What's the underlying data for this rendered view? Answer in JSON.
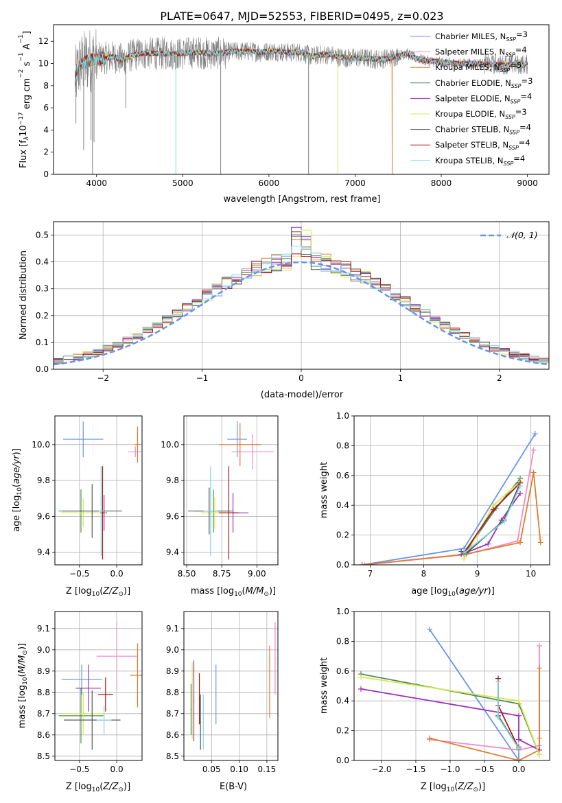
{
  "chart_data": [
    {
      "id": "spectrum",
      "type": "line",
      "title": "PLATE=0647, MJD=52553, FIBERID=0495, z=0.023",
      "xlabel": "wavelength [Angstrom, rest frame]",
      "ylabel": "Flux [f$_\\lambda$10$^{-17}$ erg cm$^{-2}$ s$^{-1}$ A$^{-1}$]",
      "ylabel_parts": [
        "Flux [f",
        "λ",
        "10",
        "−17",
        " erg cm",
        "−2",
        " s",
        "−1",
        " A",
        "−1",
        "]"
      ],
      "xlim": [
        3500,
        9250
      ],
      "ylim": [
        0,
        13.5
      ],
      "xticks": [
        4000,
        5000,
        6000,
        7000,
        8000,
        9000
      ],
      "yticks": [
        0,
        2,
        4,
        6,
        8,
        10,
        12
      ],
      "grid": false,
      "legend_position": "top-right",
      "legend": [
        {
          "label": "Chabrier MILES, N",
          "sub": "SSP",
          "tail": "=3",
          "color": "#6495ED"
        },
        {
          "label": "Salpeter MILES, N",
          "sub": "SSP",
          "tail": "=4",
          "color": "#F08BC6"
        },
        {
          "label": "Kroupa MILES, N",
          "sub": "SSP",
          "tail": "=5",
          "color": "#E07B2A"
        },
        {
          "label": "Chabrier ELODIE, N",
          "sub": "SSP",
          "tail": "=3",
          "color": "#4F8A5E"
        },
        {
          "label": "Salpeter ELODIE, N",
          "sub": "SSP",
          "tail": "=4",
          "color": "#9B30B8"
        },
        {
          "label": "Kroupa ELODIE, N",
          "sub": "SSP",
          "tail": "=3",
          "color": "#D7E84A"
        },
        {
          "label": "Chabrier STELIB, N",
          "sub": "SSP",
          "tail": "=4",
          "color": "#555555"
        },
        {
          "label": "Salpeter STELIB, N",
          "sub": "SSP",
          "tail": "=4",
          "color": "#B01515"
        },
        {
          "label": "Kroupa STELIB, N",
          "sub": "SSP",
          "tail": "=4",
          "color": "#7FD8DC"
        }
      ],
      "data_color": "#808080",
      "spectrum_coarse": {
        "x": [
          3750,
          3800,
          3900,
          4000,
          4100,
          4200,
          4300,
          4400,
          4500,
          4600,
          4700,
          4800,
          4900,
          5000,
          5100,
          5200,
          5300,
          5400,
          5500,
          5600,
          5700,
          5800,
          5900,
          6000,
          6100,
          6200,
          6300,
          6400,
          6500,
          6600,
          6700,
          6800,
          6900,
          7000,
          7100,
          7200,
          7300,
          7400,
          7500,
          7600,
          7700,
          7800,
          7900,
          8000,
          8200,
          8400,
          8600,
          8800,
          9000
        ],
        "y": [
          8.5,
          9.8,
          10.3,
          10.4,
          10.5,
          10.6,
          10.3,
          10.7,
          10.9,
          10.9,
          10.9,
          10.9,
          10.9,
          10.9,
          11.0,
          11.0,
          10.9,
          10.9,
          11.0,
          11.1,
          11.1,
          11.1,
          11.0,
          11.1,
          11.1,
          11.0,
          11.0,
          11.0,
          10.6,
          10.8,
          10.8,
          10.6,
          10.5,
          10.5,
          10.5,
          10.4,
          10.4,
          10.5,
          10.7,
          10.9,
          10.5,
          10.3,
          10.2,
          10.1,
          10.0,
          10.0,
          9.9,
          9.9,
          9.9
        ]
      },
      "dips": [
        {
          "x": 3760,
          "y": 4.6
        },
        {
          "x": 3850,
          "y": 2.2
        },
        {
          "x": 3935,
          "y": 3.1
        },
        {
          "x": 3952,
          "y": 0.0
        },
        {
          "x": 3970,
          "y": 2.9
        },
        {
          "x": 4340,
          "y": 6.0
        },
        {
          "x": 4920,
          "y": 0.0
        },
        {
          "x": 5440,
          "y": 0.0
        },
        {
          "x": 6460,
          "y": 0.0
        },
        {
          "x": 6800,
          "y": 0.0
        },
        {
          "x": 7430,
          "y": 0.0
        }
      ]
    },
    {
      "id": "residuals",
      "type": "line",
      "title": "",
      "xlabel": "(data-model)/error",
      "ylabel": "Normed distribution",
      "xlim": [
        -2.5,
        2.5
      ],
      "ylim": [
        0,
        0.55
      ],
      "xticks": [
        -2,
        -1,
        0,
        1,
        2
      ],
      "yticks": [
        0.0,
        0.1,
        0.2,
        0.3,
        0.4,
        0.5
      ],
      "grid": true,
      "legend_position": "top-right",
      "legend": [
        {
          "label": "𝒩(0, 1)",
          "style": "dashed",
          "color": "#6495ED"
        }
      ],
      "hist_bins": 50,
      "gaussian": {
        "mean": 0,
        "sigma": 1
      }
    },
    {
      "id": "age-vs-Z",
      "type": "scatter",
      "xlabel": "Z [log$_{10}$($Z/Z_\\odot$)]",
      "ylabel": "age  [log$_{10}$($age/yr$)]",
      "xlim": [
        -0.83,
        0.34
      ],
      "ylim": [
        9.33,
        10.16
      ],
      "xticks": [
        -0.5,
        0.0
      ],
      "yticks": [
        9.4,
        9.6,
        9.8,
        10.0
      ],
      "grid": true,
      "points": [
        {
          "x": -0.45,
          "y": 10.03,
          "xerr": 0.27,
          "yerr": 0.1,
          "color": "#6495ED"
        },
        {
          "x": 0.25,
          "y": 9.96,
          "xerr": 0.1,
          "yerr": 0.03,
          "color": "#F08BC6"
        },
        {
          "x": 0.28,
          "y": 10.0,
          "xerr": 0.04,
          "yerr": 0.1,
          "color": "#E07B2A"
        },
        {
          "x": -0.48,
          "y": 9.63,
          "xerr": 0.3,
          "yerr": 0.12,
          "color": "#4F8A5E"
        },
        {
          "x": -0.17,
          "y": 9.62,
          "xerr": 0.04,
          "yerr": 0.1,
          "color": "#9B30B8"
        },
        {
          "x": -0.45,
          "y": 9.62,
          "xerr": 0.3,
          "yerr": 0.08,
          "color": "#D7E84A"
        },
        {
          "x": -0.33,
          "y": 9.63,
          "xerr": 0.4,
          "yerr": 0.15,
          "color": "#555555"
        },
        {
          "x": -0.19,
          "y": 9.62,
          "xerr": 0.03,
          "yerr": 0.26,
          "color": "#B01515"
        },
        {
          "x": -0.21,
          "y": 9.63,
          "xerr": 0.03,
          "yerr": 0.25,
          "color": "#7FD8DC"
        }
      ]
    },
    {
      "id": "age-vs-mass",
      "type": "scatter",
      "xlabel": "mass [log$_{10}$($M/M_\\odot$)]",
      "ylabel": "",
      "xlim": [
        8.48,
        9.15
      ],
      "ylim": [
        9.33,
        10.16
      ],
      "xticks": [
        8.5,
        8.75,
        9.0
      ],
      "yticks": [
        9.4,
        9.6,
        9.8,
        10.0
      ],
      "grid": true,
      "points": [
        {
          "x": 8.86,
          "y": 10.03,
          "xerr": 0.07,
          "yerr": 0.1,
          "color": "#6495ED"
        },
        {
          "x": 8.97,
          "y": 9.96,
          "xerr": 0.15,
          "yerr": 0.1,
          "color": "#F08BC6"
        },
        {
          "x": 8.88,
          "y": 10.0,
          "xerr": 0.15,
          "yerr": 0.12,
          "color": "#E07B2A"
        },
        {
          "x": 8.69,
          "y": 9.63,
          "xerr": 0.14,
          "yerr": 0.12,
          "color": "#4F8A5E"
        },
        {
          "x": 8.83,
          "y": 9.62,
          "xerr": 0.11,
          "yerr": 0.11,
          "color": "#9B30B8"
        },
        {
          "x": 8.7,
          "y": 9.62,
          "xerr": 0.1,
          "yerr": 0.09,
          "color": "#D7E84A"
        },
        {
          "x": 8.66,
          "y": 9.63,
          "xerr": 0.15,
          "yerr": 0.13,
          "color": "#555555"
        },
        {
          "x": 8.8,
          "y": 9.62,
          "xerr": 0.07,
          "yerr": 0.26,
          "color": "#B01515"
        },
        {
          "x": 8.67,
          "y": 9.63,
          "xerr": 0.05,
          "yerr": 0.25,
          "color": "#7FD8DC"
        }
      ]
    },
    {
      "id": "weight-vs-age",
      "type": "line",
      "xlabel": "age  [log$_{10}$($age/yr$)]",
      "ylabel": "mass weight",
      "xlim": [
        6.7,
        10.35
      ],
      "ylim": [
        0,
        1.0
      ],
      "xticks": [
        7,
        8,
        9,
        10
      ],
      "yticks": [
        0.0,
        0.2,
        0.4,
        0.6,
        0.8,
        1.0
      ],
      "grid": true,
      "series": [
        {
          "color": "#6495ED",
          "x": [
            6.85,
            8.75,
            10.08
          ],
          "y": [
            0.0,
            0.11,
            0.88
          ]
        },
        {
          "color": "#F08BC6",
          "x": [
            6.9,
            8.8,
            9.75,
            10.05
          ],
          "y": [
            0.0,
            0.07,
            0.16,
            0.77
          ]
        },
        {
          "color": "#E07B2A",
          "x": [
            6.85,
            8.75,
            9.8,
            10.05,
            10.18
          ],
          "y": [
            0.0,
            0.07,
            0.15,
            0.62,
            0.15
          ]
        },
        {
          "color": "#4F8A5E",
          "x": [
            8.75,
            9.35,
            9.8
          ],
          "y": [
            0.07,
            0.38,
            0.58
          ]
        },
        {
          "color": "#9B30B8",
          "x": [
            8.7,
            9.2,
            9.45,
            9.8
          ],
          "y": [
            0.07,
            0.14,
            0.3,
            0.48
          ]
        },
        {
          "color": "#D7E84A",
          "x": [
            8.75,
            9.3,
            9.8
          ],
          "y": [
            0.04,
            0.4,
            0.56
          ]
        },
        {
          "color": "#555555",
          "x": [
            8.7,
            8.8,
            9.5,
            9.8
          ],
          "y": [
            0.09,
            0.08,
            0.3,
            0.55
          ]
        },
        {
          "color": "#B01515",
          "x": [
            8.75,
            9.3,
            9.8
          ],
          "y": [
            0.08,
            0.37,
            0.55
          ]
        },
        {
          "color": "#7FD8DC",
          "x": [
            8.75,
            9.5,
            9.8
          ],
          "y": [
            0.08,
            0.29,
            0.53
          ]
        }
      ]
    },
    {
      "id": "mass-vs-Z",
      "type": "scatter",
      "xlabel": "Z [log$_{10}$($Z/Z_\\odot$)]",
      "ylabel": "mass [log$_{10}$($M/M_\\odot$)]",
      "xlim": [
        -0.83,
        0.34
      ],
      "ylim": [
        8.48,
        9.18
      ],
      "xticks": [
        -0.5,
        0.0
      ],
      "yticks": [
        8.5,
        8.6,
        8.7,
        8.8,
        8.9,
        9.0,
        9.1
      ],
      "grid": true,
      "points": [
        {
          "x": -0.47,
          "y": 8.86,
          "xerr": 0.27,
          "yerr": 0.07,
          "color": "#6495ED"
        },
        {
          "x": 0.0,
          "y": 8.97,
          "xerr": 0.27,
          "yerr": 0.16,
          "color": "#F08BC6"
        },
        {
          "x": 0.28,
          "y": 8.88,
          "xerr": 0.1,
          "yerr": 0.15,
          "color": "#E07B2A"
        },
        {
          "x": -0.48,
          "y": 8.69,
          "xerr": 0.3,
          "yerr": 0.13,
          "color": "#4F8A5E"
        },
        {
          "x": -0.38,
          "y": 8.82,
          "xerr": 0.17,
          "yerr": 0.11,
          "color": "#9B30B8"
        },
        {
          "x": -0.45,
          "y": 8.7,
          "xerr": 0.3,
          "yerr": 0.1,
          "color": "#D7E84A"
        },
        {
          "x": -0.33,
          "y": 8.67,
          "xerr": 0.38,
          "yerr": 0.14,
          "color": "#555555"
        },
        {
          "x": -0.15,
          "y": 8.79,
          "xerr": 0.1,
          "yerr": 0.08,
          "color": "#B01515"
        },
        {
          "x": -0.17,
          "y": 8.67,
          "xerr": 0.1,
          "yerr": 0.07,
          "color": "#7FD8DC"
        }
      ]
    },
    {
      "id": "mass-vs-ebv",
      "type": "scatter",
      "xlabel": "E(B-V)",
      "ylabel": "",
      "xlim": [
        0.0,
        0.17
      ],
      "ylim": [
        8.48,
        9.18
      ],
      "xticks": [
        0.05,
        0.1,
        0.15
      ],
      "yticks": [
        8.5,
        8.6,
        8.7,
        8.8,
        8.9,
        9.0,
        9.1
      ],
      "grid": true,
      "points": [
        {
          "x": 0.058,
          "y": 8.79,
          "xerr": 0,
          "yerr": 0.14,
          "color": "#6495ED"
        },
        {
          "x": 0.165,
          "y": 8.96,
          "xerr": 0,
          "yerr": 0.17,
          "color": "#F08BC6"
        },
        {
          "x": 0.155,
          "y": 8.85,
          "xerr": 0,
          "yerr": 0.17,
          "color": "#E07B2A"
        },
        {
          "x": 0.013,
          "y": 8.72,
          "xerr": 0,
          "yerr": 0.12,
          "color": "#4F8A5E"
        },
        {
          "x": 0.018,
          "y": 8.76,
          "xerr": 0,
          "yerr": 0.19,
          "color": "#9B30B8"
        },
        {
          "x": 0.015,
          "y": 8.76,
          "xerr": 0,
          "yerr": 0.18,
          "color": "#D7E84A"
        },
        {
          "x": 0.03,
          "y": 8.66,
          "xerr": 0,
          "yerr": 0.13,
          "color": "#555555"
        },
        {
          "x": 0.028,
          "y": 8.77,
          "xerr": 0,
          "yerr": 0.12,
          "color": "#B01515"
        },
        {
          "x": 0.035,
          "y": 8.66,
          "xerr": 0,
          "yerr": 0.13,
          "color": "#7FD8DC"
        }
      ]
    },
    {
      "id": "weight-vs-Z",
      "type": "line",
      "xlabel": "Z [log$_{10}$($Z/Z_\\odot$)]",
      "ylabel": "mass weight",
      "xlim": [
        -2.4,
        0.45
      ],
      "ylim": [
        0,
        1.0
      ],
      "xticks": [
        -2.0,
        -1.5,
        -1.0,
        -0.5,
        0.0
      ],
      "yticks": [
        0.0,
        0.2,
        0.4,
        0.6,
        0.8,
        1.0
      ],
      "grid": true,
      "series": [
        {
          "color": "#6495ED",
          "x": [
            -1.3,
            0.0,
            0.0
          ],
          "y": [
            0.88,
            0.0,
            0.09
          ]
        },
        {
          "color": "#F08BC6",
          "x": [
            -1.3,
            0.0,
            0.3,
            0.3
          ],
          "y": [
            0.14,
            0.07,
            0.1,
            0.77
          ]
        },
        {
          "color": "#E07B2A",
          "x": [
            -1.3,
            0.0,
            0.3,
            0.3,
            0.3
          ],
          "y": [
            0.15,
            0.0,
            0.07,
            0.62,
            0.15
          ]
        },
        {
          "color": "#4F8A5E",
          "x": [
            -2.3,
            0.0,
            0.3
          ],
          "y": [
            0.58,
            0.38,
            0.04
          ]
        },
        {
          "color": "#9B30B8",
          "x": [
            -2.3,
            0.0,
            0.0,
            0.3
          ],
          "y": [
            0.48,
            0.3,
            0.14,
            0.07
          ]
        },
        {
          "color": "#D7E84A",
          "x": [
            -2.3,
            0.0,
            0.3
          ],
          "y": [
            0.56,
            0.4,
            0.04
          ]
        },
        {
          "color": "#555555",
          "x": [
            -0.3,
            -0.3,
            0.0,
            0.0
          ],
          "y": [
            0.55,
            0.3,
            0.08,
            0.09
          ]
        },
        {
          "color": "#B01515",
          "x": [
            -0.3,
            -0.3,
            0.0
          ],
          "y": [
            0.55,
            0.37,
            0.08
          ]
        },
        {
          "color": "#7FD8DC",
          "x": [
            -0.3,
            -0.3,
            0.0
          ],
          "y": [
            0.53,
            0.29,
            0.08
          ]
        }
      ]
    }
  ]
}
